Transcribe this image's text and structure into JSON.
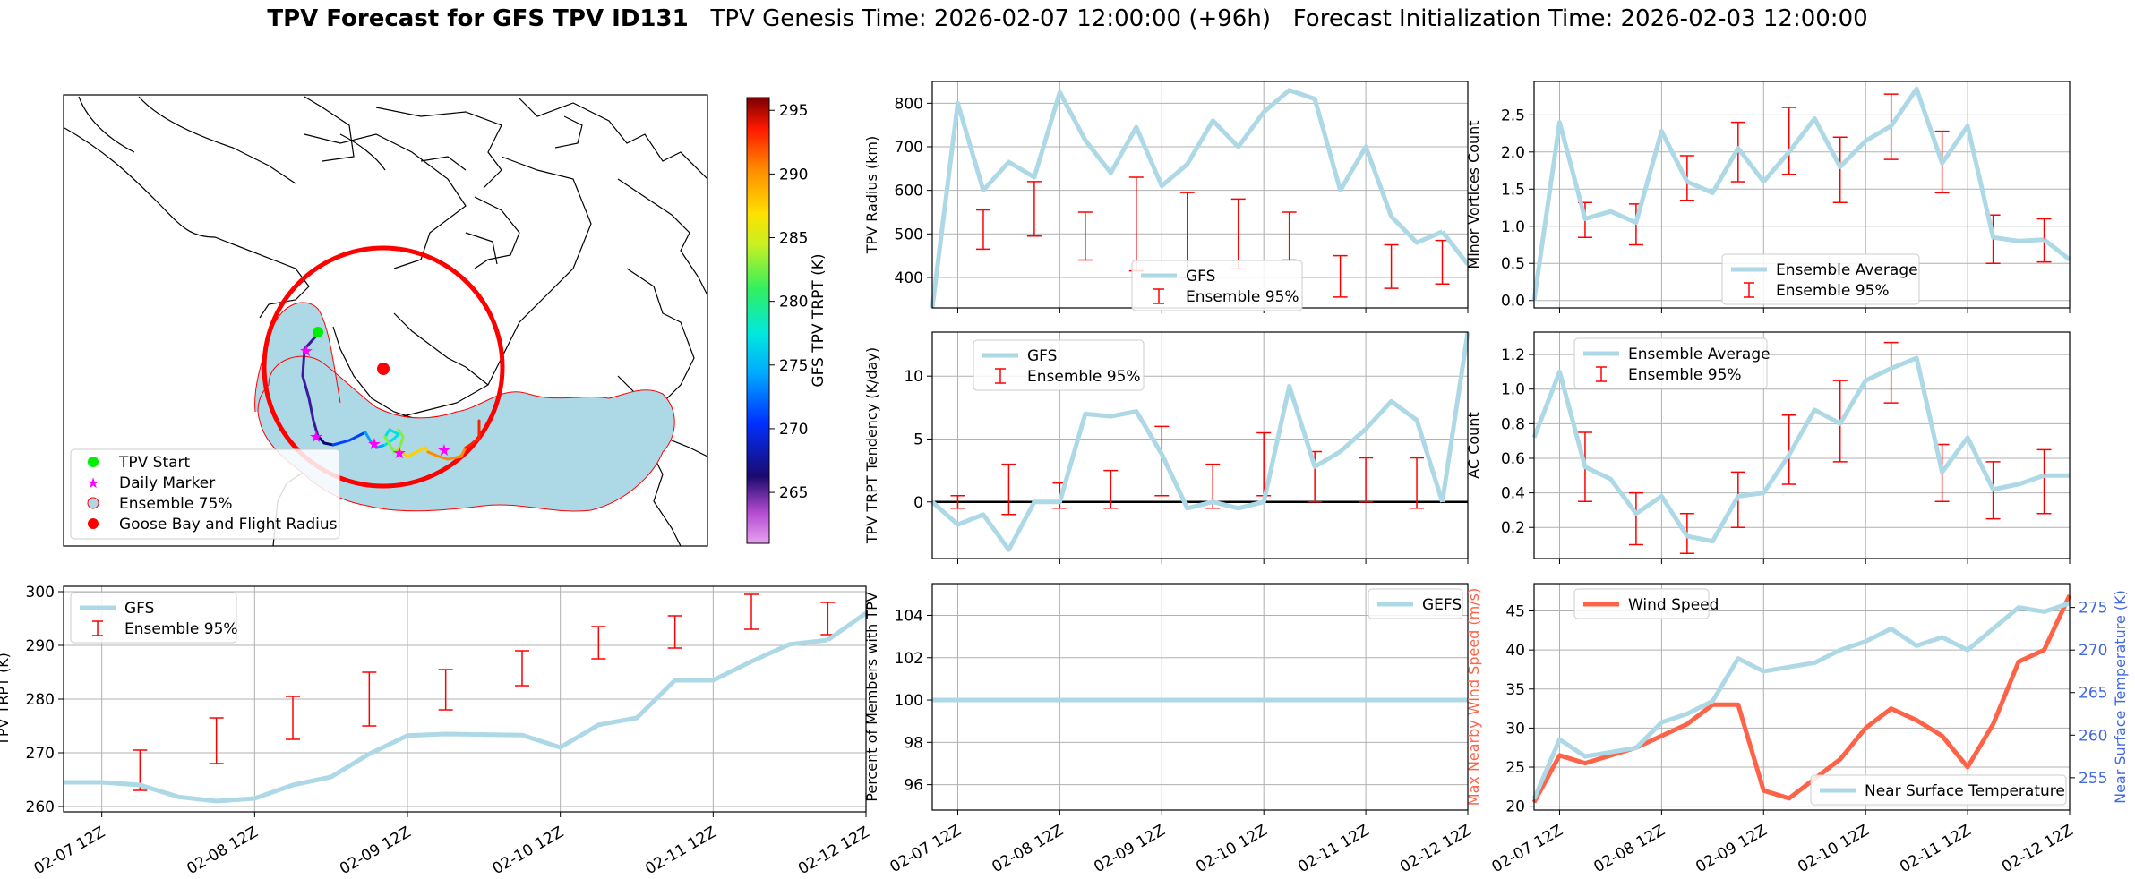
{
  "title": {
    "bold": "TPV Forecast for GFS TPV ID131",
    "genesis": "TPV Genesis Time: 2026-02-07 12:00:00 (+96h)",
    "init": "Forecast Initialization Time: 2026-02-03 12:00:00"
  },
  "map": {
    "legend": [
      "TPV Start",
      "Daily Marker",
      "Ensemble 75%",
      "Goose Bay and Flight Radius"
    ],
    "colorbar": {
      "label": "GFS TPV TRPT (K)",
      "ticks": [
        265,
        270,
        275,
        280,
        285,
        290,
        295
      ],
      "range": [
        261,
        296
      ]
    }
  },
  "colors": {
    "gfs": "#add8e6",
    "ens": "#ff0000",
    "wind": "#ff6347",
    "temp_axis": "#4169e1"
  },
  "chart_data": [
    {
      "id": "trpt",
      "type": "line",
      "ylabel": "TPV TRPT (K)",
      "xticks": [
        "02-07 12Z",
        "02-08 12Z",
        "02-09 12Z",
        "02-10 12Z",
        "02-11 12Z",
        "02-12 12Z"
      ],
      "xlim": [
        0,
        20
      ],
      "ylim": [
        259,
        301
      ],
      "yticks": [
        260,
        270,
        280,
        290,
        300
      ],
      "series": [
        {
          "name": "GFS",
          "x": [
            0,
            1,
            2,
            3,
            4,
            5,
            6,
            7,
            8,
            9,
            10,
            11,
            12,
            13,
            14,
            15,
            16,
            17,
            18,
            19,
            20
          ],
          "values": [
            264.5,
            264.5,
            264.0,
            261.8,
            261.0,
            261.5,
            264.0,
            265.5,
            269.8,
            273.2,
            273.5,
            273.4,
            273.3,
            271.0,
            275.2,
            276.5,
            283.5,
            283.5,
            287.0,
            290.2,
            291.0
          ]
        },
        {
          "name": "GFS_end",
          "x": [
            20,
            21
          ],
          "values": [
            291.0,
            296.0
          ]
        }
      ],
      "ensemble": {
        "name": "Ensemble 95%",
        "x": [
          2,
          4,
          6,
          8,
          10,
          12,
          14,
          16,
          18,
          20
        ],
        "low": [
          263.0,
          268.0,
          272.5,
          275.0,
          278.0,
          282.5,
          287.5,
          289.5,
          293.0,
          292.0
        ],
        "high": [
          270.5,
          276.5,
          280.5,
          285.0,
          285.5,
          289.0,
          293.5,
          295.5,
          299.5,
          298.0
        ]
      },
      "legend": [
        "GFS",
        "Ensemble 95%"
      ]
    },
    {
      "id": "radius",
      "type": "line",
      "ylabel": "TPV Radius (km)",
      "xlim": [
        0,
        20
      ],
      "ylim": [
        330,
        850
      ],
      "yticks": [
        400,
        500,
        600,
        700,
        800
      ],
      "series": [
        {
          "name": "GFS",
          "x": [
            0,
            1,
            2,
            3,
            4,
            5,
            6,
            7,
            8,
            9,
            10,
            11,
            12,
            13,
            14,
            15,
            16,
            17,
            18,
            19,
            20
          ],
          "values": [
            330,
            800,
            600,
            665,
            630,
            825,
            715,
            640,
            745,
            610,
            660,
            760,
            700,
            780,
            830,
            810,
            600,
            700,
            540,
            480,
            505
          ]
        },
        {
          "name": "GFS_end",
          "x": [
            20,
            21
          ],
          "values": [
            505,
            430
          ]
        }
      ],
      "ensemble": {
        "name": "Ensemble 95%",
        "x": [
          2,
          4,
          6,
          8,
          10,
          12,
          14,
          16,
          18,
          20
        ],
        "low": [
          465,
          495,
          440,
          415,
          400,
          420,
          440,
          355,
          375,
          385
        ],
        "high": [
          555,
          620,
          550,
          630,
          595,
          580,
          550,
          450,
          475,
          485
        ]
      },
      "legend": [
        "GFS",
        "Ensemble 95%"
      ]
    },
    {
      "id": "minor",
      "type": "line",
      "ylabel": "Minor Vortices Count",
      "xlim": [
        0,
        20
      ],
      "ylim": [
        -0.1,
        2.95
      ],
      "yticks": [
        0.0,
        0.5,
        1.0,
        1.5,
        2.0,
        2.5
      ],
      "series": [
        {
          "name": "Ensemble Average",
          "x": [
            0,
            1,
            2,
            3,
            4,
            5,
            6,
            7,
            8,
            9,
            10,
            11,
            12,
            13,
            14,
            15,
            16,
            17,
            18,
            19,
            20
          ],
          "values": [
            0.0,
            2.4,
            1.1,
            1.2,
            1.05,
            2.28,
            1.6,
            1.45,
            2.05,
            1.6,
            2.0,
            2.45,
            1.8,
            2.15,
            2.35,
            2.85,
            1.85,
            2.35,
            0.85,
            0.8,
            0.82
          ]
        },
        {
          "name": "GFS_end",
          "x": [
            20,
            21
          ],
          "values": [
            0.82,
            0.55
          ]
        }
      ],
      "ensemble": {
        "name": "Ensemble 95%",
        "x": [
          2,
          4,
          6,
          8,
          10,
          12,
          14,
          16,
          18,
          20
        ],
        "low": [
          0.85,
          0.75,
          1.35,
          1.6,
          1.7,
          1.32,
          1.9,
          1.45,
          0.5,
          0.52
        ],
        "high": [
          1.32,
          1.3,
          1.95,
          2.4,
          2.6,
          2.2,
          2.78,
          2.28,
          1.15,
          1.1
        ]
      },
      "legend": [
        "Ensemble Average",
        "Ensemble 95%"
      ]
    },
    {
      "id": "tendency",
      "type": "line",
      "ylabel": "TPV TRPT Tendency (K/day)",
      "xlim": [
        0,
        20
      ],
      "ylim": [
        -4.5,
        13.5
      ],
      "yticks": [
        0,
        5,
        10
      ],
      "zero_line": true,
      "series": [
        {
          "name": "GFS",
          "x": [
            0,
            1,
            2,
            3,
            4,
            5,
            6,
            7,
            8,
            9,
            10,
            11,
            12,
            13,
            14,
            15,
            16,
            17,
            18,
            19,
            20
          ],
          "values": [
            0.0,
            -1.8,
            -1.0,
            -3.8,
            0.0,
            0.0,
            7.0,
            6.8,
            7.2,
            3.8,
            -0.5,
            0.0,
            -0.5,
            0.0,
            9.2,
            2.8,
            4.0,
            5.8,
            8.0,
            6.5,
            0.0
          ]
        },
        {
          "name": "GFS_end",
          "x": [
            20,
            21
          ],
          "values": [
            0.0,
            13.5
          ]
        }
      ],
      "ensemble": {
        "name": "Ensemble 95%",
        "x": [
          1,
          3,
          5,
          7,
          9,
          11,
          13,
          15,
          17,
          19
        ],
        "low": [
          -0.5,
          -1.0,
          -0.5,
          -0.5,
          0.5,
          -0.5,
          0.5,
          0.0,
          0.0,
          -0.5
        ],
        "high": [
          0.5,
          3.0,
          1.5,
          2.5,
          6.0,
          3.0,
          5.5,
          4.0,
          3.5,
          3.5
        ]
      },
      "legend": [
        "GFS",
        "Ensemble 95%"
      ]
    },
    {
      "id": "ac",
      "type": "line",
      "ylabel": "AC Count",
      "xlim": [
        0,
        20
      ],
      "ylim": [
        0.02,
        1.33
      ],
      "yticks": [
        0.2,
        0.4,
        0.6,
        0.8,
        1.0,
        1.2
      ],
      "series": [
        {
          "name": "Ensemble Average",
          "x": [
            0,
            1,
            2,
            3,
            4,
            5,
            6,
            7,
            8,
            9,
            10,
            11,
            12,
            13,
            14,
            15,
            16,
            17,
            18,
            19,
            20
          ],
          "values": [
            0.72,
            1.1,
            0.55,
            0.48,
            0.28,
            0.38,
            0.15,
            0.12,
            0.38,
            0.4,
            0.62,
            0.88,
            0.8,
            1.05,
            1.12,
            1.18,
            0.52,
            0.72,
            0.42,
            0.45,
            0.5
          ]
        },
        {
          "name": "GFS_end",
          "x": [
            20,
            21
          ],
          "values": [
            0.5,
            0.5
          ]
        }
      ],
      "ensemble": {
        "name": "Ensemble 95%",
        "x": [
          2,
          4,
          6,
          8,
          10,
          12,
          14,
          16,
          18,
          20
        ],
        "low": [
          0.35,
          0.1,
          0.05,
          0.2,
          0.45,
          0.58,
          0.92,
          0.35,
          0.25,
          0.28
        ],
        "high": [
          0.75,
          0.4,
          0.28,
          0.52,
          0.85,
          1.05,
          1.27,
          0.68,
          0.58,
          0.65
        ]
      },
      "legend": [
        "Ensemble Average",
        "Ensemble 95%"
      ]
    },
    {
      "id": "percent",
      "type": "line",
      "ylabel": "Percent of Members with TPV",
      "xlim": [
        0,
        20
      ],
      "ylim": [
        94.8,
        105.5
      ],
      "yticks": [
        96,
        98,
        100,
        102,
        104
      ],
      "series": [
        {
          "name": "GEFS",
          "x": [
            0,
            21
          ],
          "values": [
            100,
            100
          ]
        }
      ],
      "legend": [
        "GEFS"
      ]
    },
    {
      "id": "wind",
      "type": "line",
      "ylabel": "Max Nearby Wind Speed (m/s)",
      "ylabel2": "Near Surface Temperature (K)",
      "xlim": [
        0,
        21
      ],
      "ylim": [
        19.5,
        48.5
      ],
      "yticks": [
        20,
        25,
        30,
        35,
        40,
        45
      ],
      "y2lim": [
        251.2,
        277.8
      ],
      "y2ticks": [
        255,
        260,
        265,
        270,
        275
      ],
      "series": [
        {
          "name": "Wind Speed",
          "x": [
            0,
            1,
            2,
            3,
            4,
            5,
            6,
            7,
            8,
            9,
            10,
            11,
            12,
            13,
            14,
            15,
            16,
            17,
            18,
            19,
            20,
            21
          ],
          "values": [
            20.5,
            26.5,
            25.5,
            26.5,
            27.5,
            29.0,
            30.5,
            33.0,
            33.0,
            22.0,
            21.0,
            23.5,
            26.0,
            30.0,
            32.5,
            31.0,
            29.0,
            25.0,
            30.5,
            38.5,
            40.0,
            47.0
          ]
        }
      ],
      "series2": [
        {
          "name": "Near Surface Temperature",
          "x": [
            0,
            1,
            2,
            3,
            4,
            5,
            6,
            7,
            8,
            9,
            10,
            11,
            12,
            13,
            14,
            15,
            16,
            17,
            18,
            19,
            20,
            21
          ],
          "values": [
            252.5,
            259.5,
            257.5,
            258.0,
            258.5,
            261.5,
            262.5,
            264.0,
            269.0,
            267.5,
            268.0,
            268.5,
            270.0,
            271.0,
            272.5,
            270.5,
            271.5,
            270.0,
            272.5,
            275.0,
            274.5,
            275.5
          ]
        }
      ],
      "legend": [
        "Wind Speed",
        "Near Surface Temperature"
      ]
    }
  ]
}
